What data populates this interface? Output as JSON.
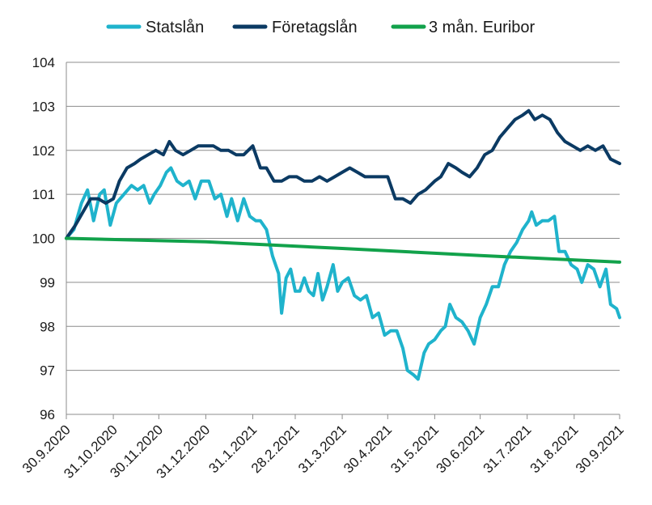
{
  "chart_data": {
    "type": "line",
    "title": "",
    "xlabel": "",
    "ylabel": "",
    "ylim": [
      96,
      104
    ],
    "yticks": [
      "96",
      "97",
      "98",
      "99",
      "100",
      "101",
      "102",
      "103",
      "104"
    ],
    "x_start": "2020-09-30",
    "x_end": "2021-09-30",
    "xticks": [
      {
        "date": "2020-09-30",
        "label": "30.9.2020"
      },
      {
        "date": "2020-10-31",
        "label": "31.10.2020"
      },
      {
        "date": "2020-11-30",
        "label": "30.11.2020"
      },
      {
        "date": "2020-12-31",
        "label": "31.12.2020"
      },
      {
        "date": "2021-01-31",
        "label": "31.1.2021"
      },
      {
        "date": "2021-02-28",
        "label": "28.2.2021"
      },
      {
        "date": "2021-03-31",
        "label": "31.3.2021"
      },
      {
        "date": "2021-04-30",
        "label": "30.4.2021"
      },
      {
        "date": "2021-05-31",
        "label": "31.5.2021"
      },
      {
        "date": "2021-06-30",
        "label": "30.6.2021"
      },
      {
        "date": "2021-07-31",
        "label": "31.7.2021"
      },
      {
        "date": "2021-08-31",
        "label": "31.8.2021"
      },
      {
        "date": "2021-09-30",
        "label": "30.9.2021"
      }
    ],
    "grid": "horizontal",
    "legend_position": "top",
    "series": [
      {
        "name": "Statslån",
        "color": "#1fb3cc",
        "points": [
          [
            "2020-09-30",
            100.0
          ],
          [
            "2020-10-05",
            100.2
          ],
          [
            "2020-10-10",
            100.8
          ],
          [
            "2020-10-14",
            101.1
          ],
          [
            "2020-10-18",
            100.4
          ],
          [
            "2020-10-22",
            101.0
          ],
          [
            "2020-10-25",
            101.1
          ],
          [
            "2020-10-29",
            100.3
          ],
          [
            "2020-11-02",
            100.8
          ],
          [
            "2020-11-07",
            101.0
          ],
          [
            "2020-11-12",
            101.2
          ],
          [
            "2020-11-16",
            101.1
          ],
          [
            "2020-11-20",
            101.2
          ],
          [
            "2020-11-24",
            100.8
          ],
          [
            "2020-11-27",
            101.0
          ],
          [
            "2020-12-01",
            101.2
          ],
          [
            "2020-12-05",
            101.5
          ],
          [
            "2020-12-08",
            101.6
          ],
          [
            "2020-12-12",
            101.3
          ],
          [
            "2020-12-16",
            101.2
          ],
          [
            "2020-12-20",
            101.3
          ],
          [
            "2020-12-24",
            100.9
          ],
          [
            "2020-12-28",
            101.3
          ],
          [
            "2021-01-02",
            101.3
          ],
          [
            "2021-01-06",
            100.9
          ],
          [
            "2021-01-10",
            101.0
          ],
          [
            "2021-01-14",
            100.5
          ],
          [
            "2021-01-17",
            100.9
          ],
          [
            "2021-01-21",
            100.4
          ],
          [
            "2021-01-25",
            100.9
          ],
          [
            "2021-01-29",
            100.5
          ],
          [
            "2021-02-02",
            100.4
          ],
          [
            "2021-02-05",
            100.4
          ],
          [
            "2021-02-09",
            100.2
          ],
          [
            "2021-02-13",
            99.6
          ],
          [
            "2021-02-17",
            99.2
          ],
          [
            "2021-02-19",
            98.3
          ],
          [
            "2021-02-22",
            99.1
          ],
          [
            "2021-02-25",
            99.3
          ],
          [
            "2021-02-28",
            98.8
          ],
          [
            "2021-03-03",
            98.8
          ],
          [
            "2021-03-06",
            99.1
          ],
          [
            "2021-03-09",
            98.8
          ],
          [
            "2021-03-12",
            98.7
          ],
          [
            "2021-03-15",
            99.2
          ],
          [
            "2021-03-18",
            98.6
          ],
          [
            "2021-03-21",
            98.9
          ],
          [
            "2021-03-25",
            99.4
          ],
          [
            "2021-03-28",
            98.8
          ],
          [
            "2021-03-31",
            99.0
          ],
          [
            "2021-04-04",
            99.1
          ],
          [
            "2021-04-08",
            98.7
          ],
          [
            "2021-04-12",
            98.6
          ],
          [
            "2021-04-16",
            98.7
          ],
          [
            "2021-04-20",
            98.2
          ],
          [
            "2021-04-24",
            98.3
          ],
          [
            "2021-04-28",
            97.8
          ],
          [
            "2021-05-02",
            97.9
          ],
          [
            "2021-05-06",
            97.9
          ],
          [
            "2021-05-10",
            97.5
          ],
          [
            "2021-05-13",
            97.0
          ],
          [
            "2021-05-17",
            96.9
          ],
          [
            "2021-05-20",
            96.8
          ],
          [
            "2021-05-24",
            97.4
          ],
          [
            "2021-05-27",
            97.6
          ],
          [
            "2021-05-31",
            97.7
          ],
          [
            "2021-06-04",
            97.9
          ],
          [
            "2021-06-07",
            98.0
          ],
          [
            "2021-06-10",
            98.5
          ],
          [
            "2021-06-14",
            98.2
          ],
          [
            "2021-06-18",
            98.1
          ],
          [
            "2021-06-22",
            97.9
          ],
          [
            "2021-06-26",
            97.6
          ],
          [
            "2021-06-30",
            98.2
          ],
          [
            "2021-07-04",
            98.5
          ],
          [
            "2021-07-08",
            98.9
          ],
          [
            "2021-07-12",
            98.9
          ],
          [
            "2021-07-16",
            99.4
          ],
          [
            "2021-07-20",
            99.7
          ],
          [
            "2021-07-24",
            99.9
          ],
          [
            "2021-07-28",
            100.2
          ],
          [
            "2021-08-01",
            100.4
          ],
          [
            "2021-08-03",
            100.6
          ],
          [
            "2021-08-06",
            100.3
          ],
          [
            "2021-08-10",
            100.4
          ],
          [
            "2021-08-14",
            100.4
          ],
          [
            "2021-08-18",
            100.5
          ],
          [
            "2021-08-21",
            99.7
          ],
          [
            "2021-08-25",
            99.7
          ],
          [
            "2021-08-29",
            99.4
          ],
          [
            "2021-09-02",
            99.3
          ],
          [
            "2021-09-05",
            99.0
          ],
          [
            "2021-09-09",
            99.4
          ],
          [
            "2021-09-13",
            99.3
          ],
          [
            "2021-09-17",
            98.9
          ],
          [
            "2021-09-21",
            99.3
          ],
          [
            "2021-09-24",
            98.5
          ],
          [
            "2021-09-28",
            98.4
          ],
          [
            "2021-09-30",
            98.2
          ]
        ]
      },
      {
        "name": "Företagslån",
        "color": "#0b3a63",
        "points": [
          [
            "2020-09-30",
            100.0
          ],
          [
            "2020-10-06",
            100.3
          ],
          [
            "2020-10-11",
            100.6
          ],
          [
            "2020-10-16",
            100.9
          ],
          [
            "2020-10-21",
            100.9
          ],
          [
            "2020-10-26",
            100.8
          ],
          [
            "2020-10-31",
            100.9
          ],
          [
            "2020-11-04",
            101.3
          ],
          [
            "2020-11-09",
            101.6
          ],
          [
            "2020-11-14",
            101.7
          ],
          [
            "2020-11-18",
            101.8
          ],
          [
            "2020-11-23",
            101.9
          ],
          [
            "2020-11-28",
            102.0
          ],
          [
            "2020-12-03",
            101.9
          ],
          [
            "2020-12-07",
            102.2
          ],
          [
            "2020-12-11",
            102.0
          ],
          [
            "2020-12-16",
            101.9
          ],
          [
            "2020-12-21",
            102.0
          ],
          [
            "2020-12-26",
            102.1
          ],
          [
            "2020-12-31",
            102.1
          ],
          [
            "2021-01-05",
            102.1
          ],
          [
            "2021-01-10",
            102.0
          ],
          [
            "2021-01-15",
            102.0
          ],
          [
            "2021-01-20",
            101.9
          ],
          [
            "2021-01-25",
            101.9
          ],
          [
            "2021-01-31",
            102.1
          ],
          [
            "2021-02-05",
            101.6
          ],
          [
            "2021-02-09",
            101.6
          ],
          [
            "2021-02-14",
            101.3
          ],
          [
            "2021-02-19",
            101.3
          ],
          [
            "2021-02-24",
            101.4
          ],
          [
            "2021-03-01",
            101.4
          ],
          [
            "2021-03-06",
            101.3
          ],
          [
            "2021-03-11",
            101.3
          ],
          [
            "2021-03-16",
            101.4
          ],
          [
            "2021-03-21",
            101.3
          ],
          [
            "2021-03-26",
            101.4
          ],
          [
            "2021-03-31",
            101.5
          ],
          [
            "2021-04-05",
            101.6
          ],
          [
            "2021-04-10",
            101.5
          ],
          [
            "2021-04-15",
            101.4
          ],
          [
            "2021-04-20",
            101.4
          ],
          [
            "2021-04-25",
            101.4
          ],
          [
            "2021-04-30",
            101.4
          ],
          [
            "2021-05-05",
            100.9
          ],
          [
            "2021-05-10",
            100.9
          ],
          [
            "2021-05-15",
            100.8
          ],
          [
            "2021-05-20",
            101.0
          ],
          [
            "2021-05-25",
            101.1
          ],
          [
            "2021-05-31",
            101.3
          ],
          [
            "2021-06-04",
            101.4
          ],
          [
            "2021-06-09",
            101.7
          ],
          [
            "2021-06-14",
            101.6
          ],
          [
            "2021-06-18",
            101.5
          ],
          [
            "2021-06-23",
            101.4
          ],
          [
            "2021-06-28",
            101.6
          ],
          [
            "2021-07-03",
            101.9
          ],
          [
            "2021-07-08",
            102.0
          ],
          [
            "2021-07-13",
            102.3
          ],
          [
            "2021-07-18",
            102.5
          ],
          [
            "2021-07-23",
            102.7
          ],
          [
            "2021-07-28",
            102.8
          ],
          [
            "2021-08-01",
            102.9
          ],
          [
            "2021-08-05",
            102.7
          ],
          [
            "2021-08-10",
            102.8
          ],
          [
            "2021-08-15",
            102.7
          ],
          [
            "2021-08-20",
            102.4
          ],
          [
            "2021-08-25",
            102.2
          ],
          [
            "2021-08-30",
            102.1
          ],
          [
            "2021-09-04",
            102.0
          ],
          [
            "2021-09-09",
            102.1
          ],
          [
            "2021-09-14",
            102.0
          ],
          [
            "2021-09-19",
            102.1
          ],
          [
            "2021-09-24",
            101.8
          ],
          [
            "2021-09-30",
            101.7
          ]
        ]
      },
      {
        "name": "3 mån. Euribor",
        "color": "#12a24b",
        "points": [
          [
            "2020-09-30",
            100.0
          ],
          [
            "2020-12-31",
            99.92
          ],
          [
            "2021-03-31",
            99.77
          ],
          [
            "2021-06-30",
            99.61
          ],
          [
            "2021-09-30",
            99.46
          ]
        ]
      }
    ]
  }
}
